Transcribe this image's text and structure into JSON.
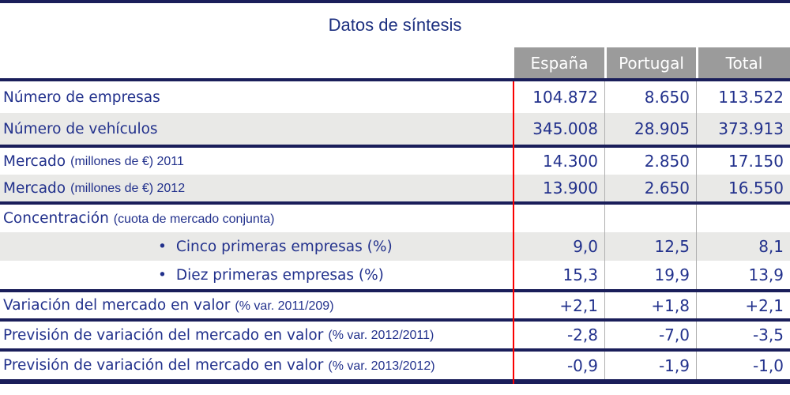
{
  "title": "Datos de síntesis",
  "table": {
    "bullet": "•",
    "columns": [
      "España",
      "Portugal",
      "Total"
    ],
    "rows": [
      {
        "label": "Número de empresas",
        "espana": "104.872",
        "portugal": "8.650",
        "total": "113.522"
      },
      {
        "label": "Número de vehículos",
        "espana": "345.008",
        "portugal": "28.905",
        "total": "373.913"
      },
      {
        "label": "Mercado",
        "note": "(millones de €) 2011",
        "espana": "14.300",
        "portugal": "2.850",
        "total": "17.150"
      },
      {
        "label": "Mercado",
        "note": "(millones de €) 2012",
        "espana": "13.900",
        "portugal": "2.650",
        "total": "16.550"
      },
      {
        "label": "Concentración",
        "note": "(cuota de mercado conjunta)",
        "espana": "",
        "portugal": "",
        "total": ""
      },
      {
        "label": "Cinco primeras empresas (%)",
        "espana": "9,0",
        "portugal": "12,5",
        "total": "8,1"
      },
      {
        "label": "Diez primeras empresas (%)",
        "espana": "15,3",
        "portugal": "19,9",
        "total": "13,9"
      },
      {
        "label": "Variación del mercado en valor",
        "note": "(% var. 2011/209)",
        "espana": "+2,1",
        "portugal": "+1,8",
        "total": "+2,1"
      },
      {
        "label": "Previsión de variación del mercado en valor",
        "note": "(% var. 2012/2011)",
        "espana": "-2,8",
        "portugal": "-7,0",
        "total": "-3,5"
      },
      {
        "label": "Previsión de variación del mercado en valor",
        "note": "(% var. 2013/2012)",
        "espana": "-0,9",
        "portugal": "-1,9",
        "total": "-1,0"
      }
    ]
  },
  "colors": {
    "navy_text": "#22318c",
    "navy_border": "#1a1e5a",
    "header_bg": "#9b9b9b",
    "alt_row_bg": "#e9e9e7",
    "red_rule": "#fa0000",
    "separator_gray": "#b0b0b0"
  },
  "chart_data": {
    "type": "table",
    "title": "Datos de síntesis",
    "columns": [
      "",
      "España",
      "Portugal",
      "Total"
    ],
    "rows": [
      [
        "Número de empresas",
        "104.872",
        "8.650",
        "113.522"
      ],
      [
        "Número de vehículos",
        "345.008",
        "28.905",
        "373.913"
      ],
      [
        "Mercado (millones de €) 2011",
        "14.300",
        "2.850",
        "17.150"
      ],
      [
        "Mercado (millones de €) 2012",
        "13.900",
        "2.650",
        "16.550"
      ],
      [
        "Concentración (cuota de mercado conjunta)",
        "",
        "",
        ""
      ],
      [
        "• Cinco primeras empresas (%)",
        "9,0",
        "12,5",
        "8,1"
      ],
      [
        "• Diez primeras empresas (%)",
        "15,3",
        "19,9",
        "13,9"
      ],
      [
        "Variación del mercado en valor (% var. 2011/209)",
        "+2,1",
        "+1,8",
        "+2,1"
      ],
      [
        "Previsión de variación del mercado en valor (% var. 2012/2011)",
        "-2,8",
        "-7,0",
        "-3,5"
      ],
      [
        "Previsión de variación del mercado en valor (% var. 2013/2012)",
        "-0,9",
        "-1,9",
        "-1,0"
      ]
    ]
  }
}
